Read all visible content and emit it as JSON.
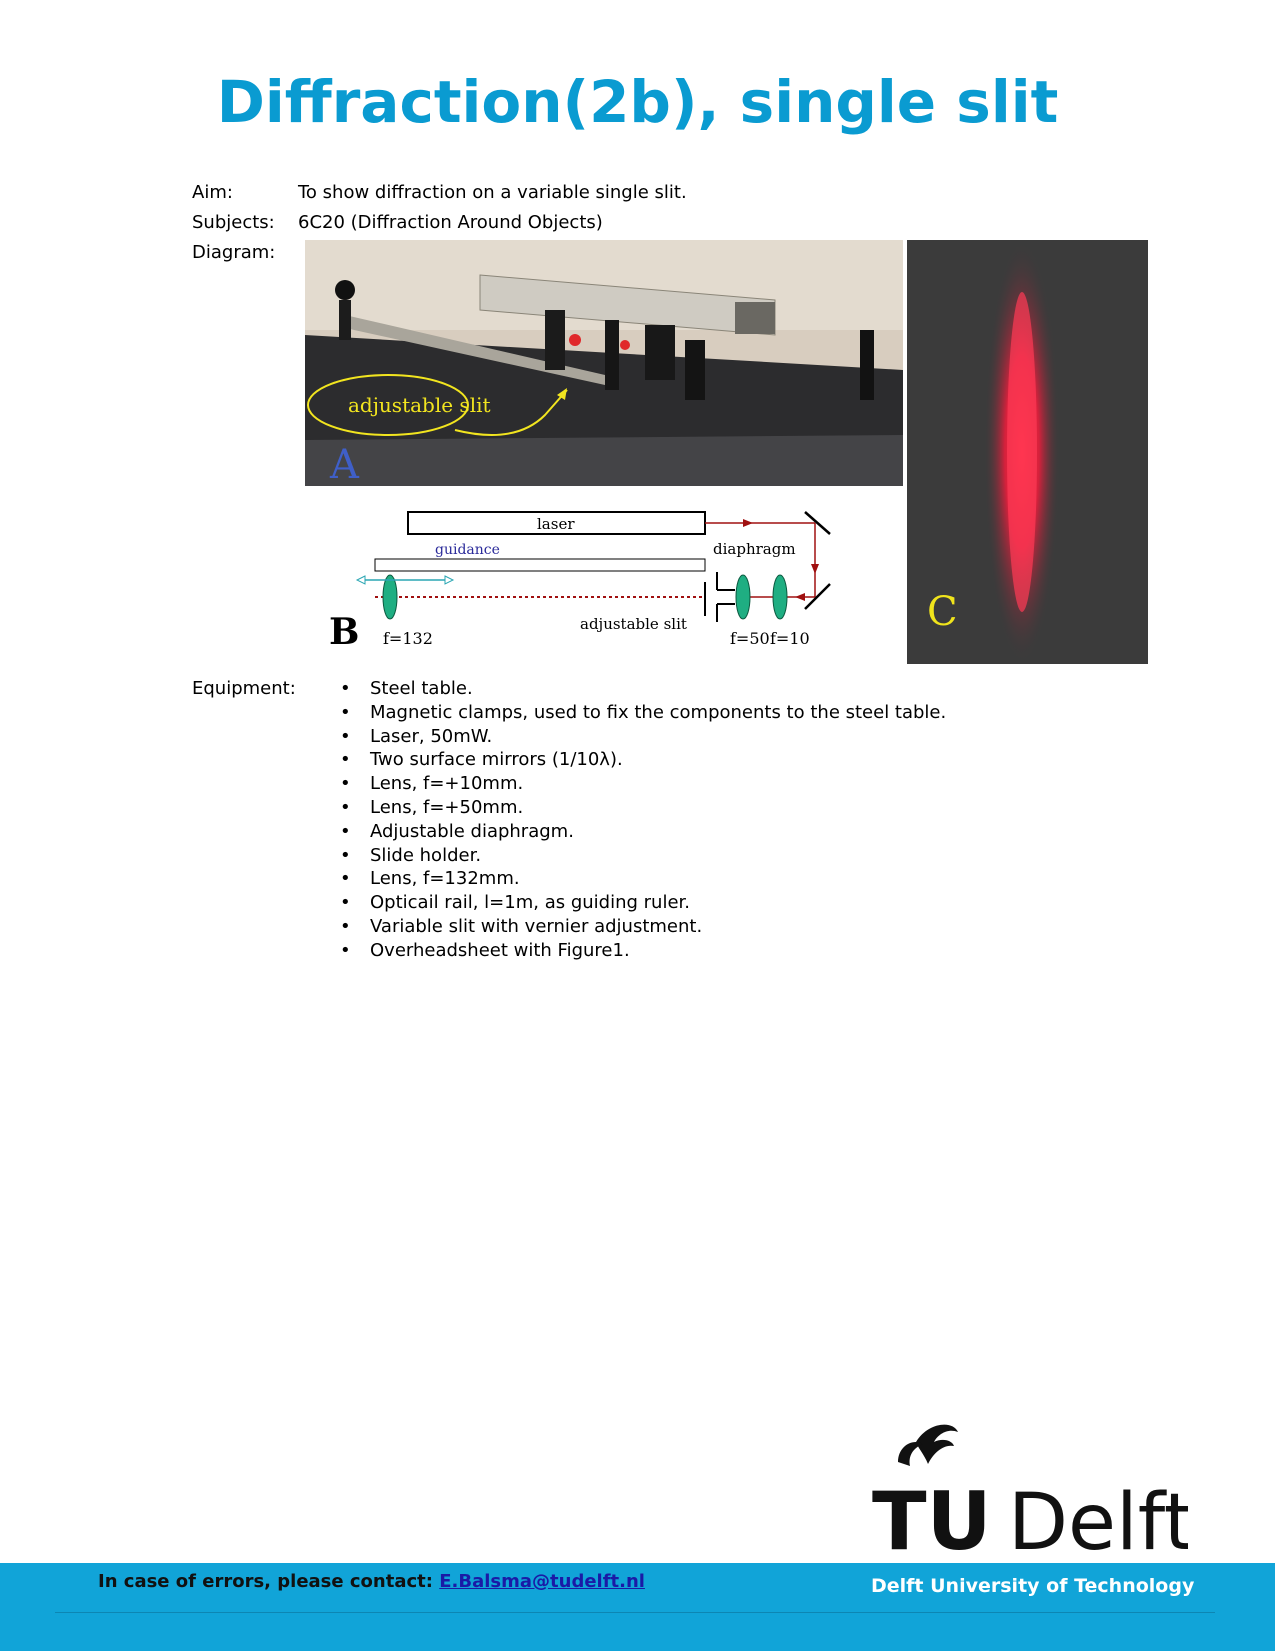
{
  "title": "Diffraction(2b), single slit",
  "aim": {
    "label": "Aim:",
    "value": "To show diffraction on a variable single slit."
  },
  "subjects": {
    "label": "Subjects:",
    "value": "6C20 (Diffraction Around Objects)"
  },
  "diagram": {
    "label": "Diagram:",
    "photo": {
      "panel_letter": "A",
      "annotation": "adjustable slit"
    },
    "schematic": {
      "panel_letter": "B",
      "laser": "laser",
      "guidance": "guidance",
      "diaphragm": "diaphragm",
      "adjustable_slit": "adjustable slit",
      "lens1": "f=132",
      "lens2": "f=50",
      "lens3": "f=10"
    },
    "pattern": {
      "panel_letter": "C"
    }
  },
  "equipment": {
    "label": "Equipment:",
    "bullet": "•",
    "items": [
      "Steel table.",
      "Magnetic clamps, used to fix the components to the steel table.",
      "Laser, 50mW.",
      "Two surface mirrors (1/10λ).",
      "Lens, f=+10mm.",
      "Lens, f=+50mm.",
      "Adjustable diaphragm.",
      "Slide holder.",
      "Lens, f=132mm.",
      "Opticail rail, l=1m, as guiding ruler.",
      "Variable slit with vernier adjustment.",
      "Overheadsheet with Figure1."
    ]
  },
  "footer": {
    "contact_prefix": "In case of errors, please contact:",
    "contact_email": "E.Balsma@tudelft.nl",
    "university": "Delft University of Technology"
  },
  "logo": {
    "tu": "TU",
    "delft": "Delft"
  },
  "colors": {
    "brand_blue": "#0a9bd1",
    "footer_blue": "#11a4d8"
  }
}
